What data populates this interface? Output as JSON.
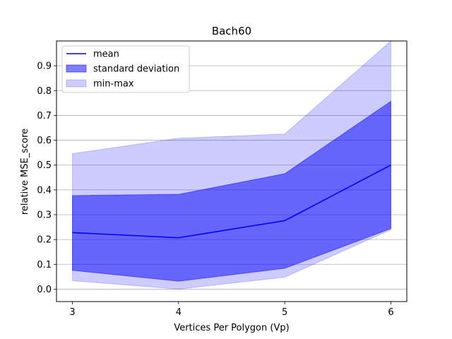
{
  "chart_data": {
    "type": "area",
    "title": "Bach60",
    "xlabel": "Vertices Per Polygon (Vp)",
    "ylabel": "relative MSE_score",
    "x": [
      3,
      4,
      5,
      6
    ],
    "xticks": [
      "3",
      "4",
      "5",
      "6"
    ],
    "yticks": [
      "0.0",
      "0.1",
      "0.2",
      "0.3",
      "0.4",
      "0.5",
      "0.6",
      "0.7",
      "0.8",
      "0.9"
    ],
    "xlim": [
      2.85,
      6.15
    ],
    "ylim": [
      -0.05,
      1.0
    ],
    "grid": "horizontal",
    "legend_position": "top-left",
    "series": [
      {
        "name": "mean",
        "kind": "line",
        "color": "#0000ff",
        "values": [
          0.228,
          0.207,
          0.276,
          0.5
        ]
      },
      {
        "name": "standard deviation",
        "kind": "band",
        "color": "#0000ff",
        "opacity": 0.5,
        "lower": [
          0.076,
          0.032,
          0.084,
          0.244
        ],
        "upper": [
          0.377,
          0.382,
          0.465,
          0.757
        ]
      },
      {
        "name": "min-max",
        "kind": "band",
        "color": "#0000ff",
        "opacity": 0.2,
        "lower": [
          0.034,
          0.0,
          0.048,
          0.24
        ],
        "upper": [
          0.546,
          0.608,
          0.625,
          1.0
        ]
      }
    ]
  }
}
